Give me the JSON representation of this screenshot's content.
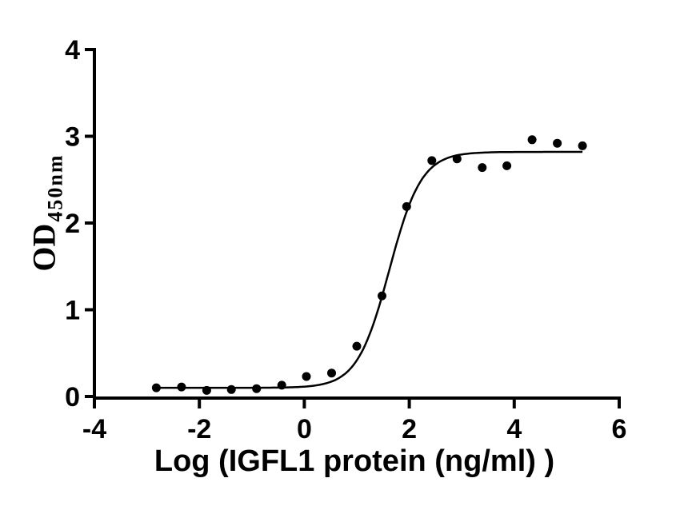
{
  "figure": {
    "background_color": "#ffffff",
    "ink_color": "#000000"
  },
  "chart_data": {
    "type": "scatter",
    "title": "",
    "xlabel": "Log (IGFL1 protein (ng/ml) )",
    "ylabel": {
      "main": "OD",
      "subscript": "450nm"
    },
    "xlim": [
      -4,
      6
    ],
    "ylim": [
      0,
      4
    ],
    "x_ticks": [
      "-4",
      "-2",
      "0",
      "2",
      "4",
      "6"
    ],
    "y_ticks": [
      "0",
      "1",
      "2",
      "3",
      "4"
    ],
    "grid": false,
    "legend": false,
    "marker": {
      "shape": "circle",
      "radius_px": 5.5,
      "color": "#000000"
    },
    "points_log_conc_vs_od": [
      [
        -2.82,
        0.1
      ],
      [
        -2.34,
        0.11
      ],
      [
        -1.86,
        0.07
      ],
      [
        -1.39,
        0.08
      ],
      [
        -0.91,
        0.09
      ],
      [
        -0.43,
        0.13
      ],
      [
        0.04,
        0.23
      ],
      [
        0.52,
        0.27
      ],
      [
        1.0,
        0.58
      ],
      [
        1.48,
        1.16
      ],
      [
        1.95,
        2.19
      ],
      [
        2.43,
        2.72
      ],
      [
        2.91,
        2.74
      ],
      [
        3.39,
        2.64
      ],
      [
        3.86,
        2.66
      ],
      [
        4.34,
        2.96
      ],
      [
        4.82,
        2.92
      ],
      [
        5.3,
        2.89
      ]
    ],
    "fit_curve": {
      "model": "four-parameter-logistic",
      "bottom": 0.1,
      "top": 2.82,
      "logEC50": 1.62,
      "hillslope": 1.42,
      "x_start": -2.82,
      "x_end": 5.3,
      "color": "#000000"
    }
  }
}
